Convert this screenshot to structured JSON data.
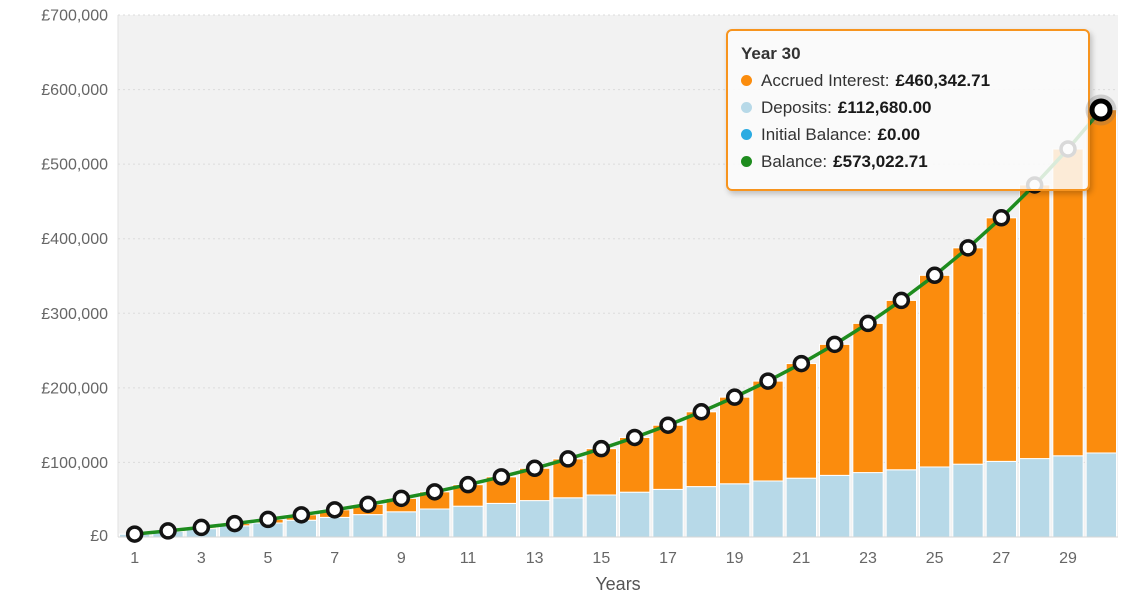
{
  "chart_data": {
    "type": "bar",
    "subtype": "stacked-columns-with-line",
    "title": "",
    "xlabel": "Years",
    "ylabel": "",
    "ylim": [
      0,
      700000
    ],
    "ytick_values": [
      0,
      100000,
      200000,
      300000,
      400000,
      500000,
      600000,
      700000
    ],
    "ytick_labels": [
      "£0",
      "£100,000",
      "£200,000",
      "£300,000",
      "£400,000",
      "£500,000",
      "£600,000",
      "£700,000"
    ],
    "xtick_values": [
      1,
      3,
      5,
      7,
      9,
      11,
      13,
      15,
      17,
      19,
      21,
      23,
      25,
      27,
      29
    ],
    "grid": "horizontal dotted",
    "legend": "none (series shown in tooltip)",
    "plot_bg": "#f2f2f2",
    "currency": "£",
    "x": [
      1,
      2,
      3,
      4,
      5,
      6,
      7,
      8,
      9,
      10,
      11,
      12,
      13,
      14,
      15,
      16,
      17,
      18,
      19,
      20,
      21,
      22,
      23,
      24,
      25,
      26,
      27,
      28,
      29,
      30
    ],
    "series": [
      {
        "name": "Initial Balance",
        "type": "column",
        "color": "#2aabe2",
        "values": [
          0,
          0,
          0,
          0,
          0,
          0,
          0,
          0,
          0,
          0,
          0,
          0,
          0,
          0,
          0,
          0,
          0,
          0,
          0,
          0,
          0,
          0,
          0,
          0,
          0,
          0,
          0,
          0,
          0,
          0
        ]
      },
      {
        "name": "Deposits",
        "type": "column",
        "color": "#b7d9e8",
        "values": [
          3756,
          7512,
          11268,
          15024,
          18780,
          22536,
          26292,
          30048,
          33804,
          37560,
          41316,
          45072,
          48828,
          52584,
          56340,
          60096,
          63852,
          67608,
          71364,
          75120,
          78876,
          82632,
          86388,
          90144,
          93900,
          97656,
          101412,
          105168,
          108924,
          112680
        ]
      },
      {
        "name": "Accrued Interest",
        "type": "column",
        "color": "#fb8c0d",
        "values": [
          159,
          686,
          1613,
          2980,
          4828,
          7202,
          10150,
          13728,
          17993,
          23011,
          28852,
          35593,
          43319,
          52122,
          62104,
          73373,
          86053,
          100274,
          116181,
          133933,
          153703,
          175680,
          200073,
          227107,
          257026,
          290088,
          326623,
          366936,
          411385,
          460342.71
        ]
      },
      {
        "name": "Balance",
        "type": "line",
        "color": "#1e8c1e",
        "marker": "white-circle-black-ring",
        "values": [
          3915,
          8198,
          12881,
          18004,
          23608,
          29738,
          36442,
          43776,
          51797,
          60571,
          70168,
          80665,
          92147,
          104706,
          118444,
          133469,
          149905,
          167882,
          187545,
          209053,
          232579,
          258312,
          286461,
          317251,
          350926,
          387744,
          428035,
          472104,
          520309,
          573022.71
        ]
      }
    ],
    "hovered_point": {
      "x": 30,
      "series": "Balance",
      "value": 573022.71
    }
  },
  "tooltip": {
    "title": "Year 30",
    "border_color": "#f7941e",
    "rows": [
      {
        "label": "Accrued Interest:",
        "value": "£460,342.71",
        "color": "#fb8c0d"
      },
      {
        "label": "Deposits:",
        "value": "£112,680.00",
        "color": "#b7d9e8"
      },
      {
        "label": "Initial Balance:",
        "value": "£0.00",
        "color": "#2aabe2"
      },
      {
        "label": "Balance:",
        "value": "£573,022.71",
        "color": "#1e8c1e"
      }
    ]
  },
  "axes": {
    "x_title": "Years"
  }
}
